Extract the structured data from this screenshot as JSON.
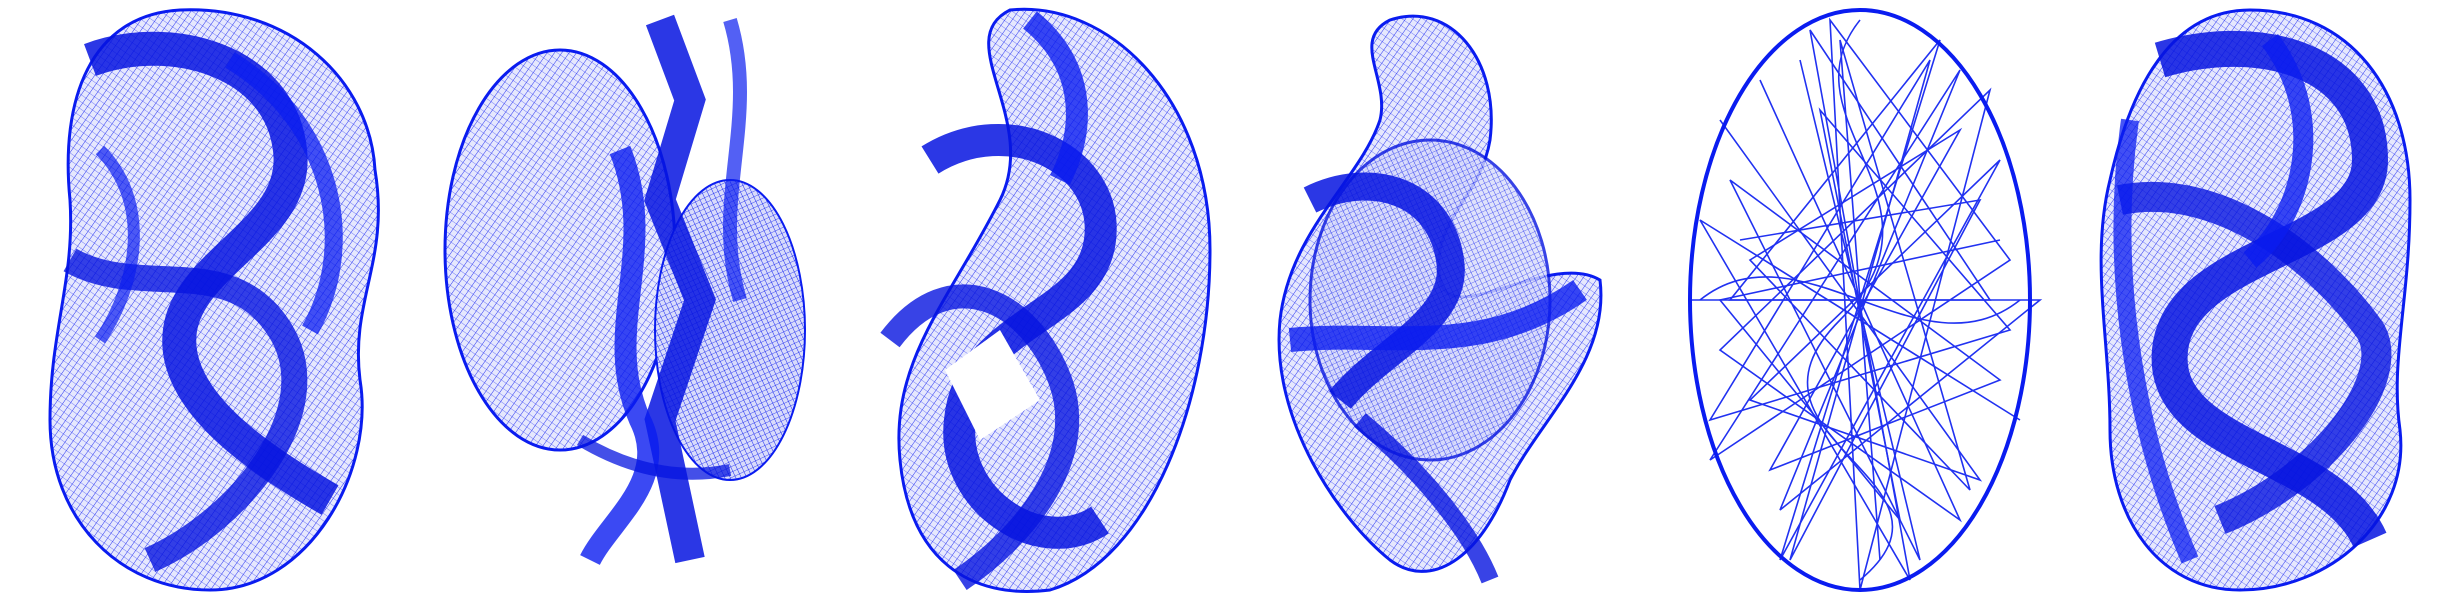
{
  "figure": {
    "panels": [
      {
        "id": "mesh-1",
        "shape": "wrapped-ribbon-volume"
      },
      {
        "id": "mesh-2",
        "shape": "torus-with-central-folds"
      },
      {
        "id": "mesh-3",
        "shape": "twisted-ribbon-loop"
      },
      {
        "id": "mesh-4",
        "shape": "folded-sheet-with-ellipsoid"
      },
      {
        "id": "mesh-5",
        "shape": "tangled-coarse-wireframe-ellipse"
      },
      {
        "id": "mesh-6",
        "shape": "wrapped-dense-volume"
      }
    ],
    "colors": {
      "wire": "#0a1cf0",
      "wire_dense": "#0614e0",
      "fill_light": "#c9ccf7",
      "background": "#ffffff"
    }
  }
}
